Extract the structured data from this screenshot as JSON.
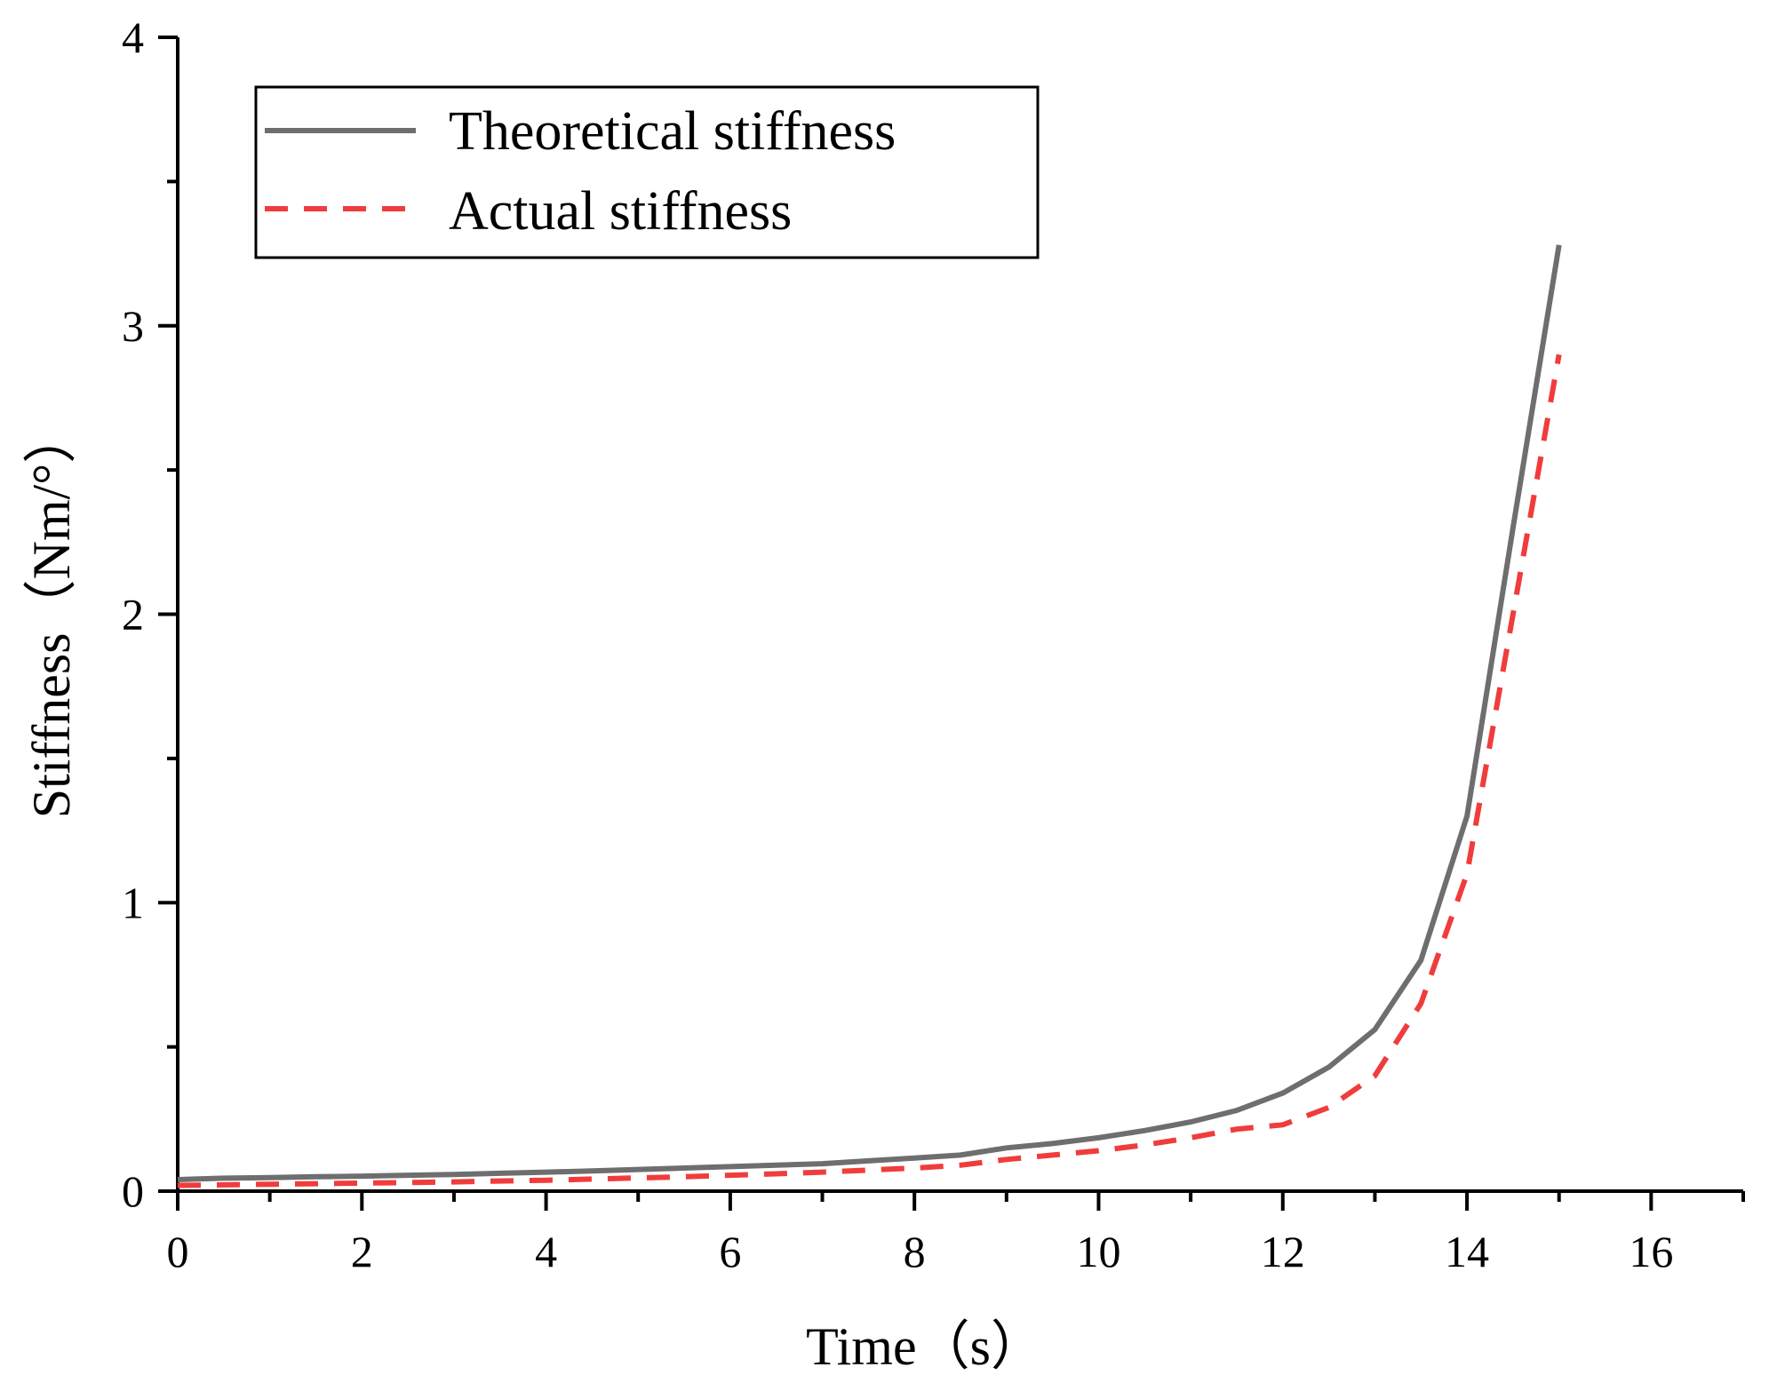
{
  "chart_data": {
    "type": "line",
    "title": "",
    "xlabel": "Time（s）",
    "ylabel": "Stiffness（Nm/°）",
    "xlim": [
      0,
      17
    ],
    "ylim": [
      0,
      4
    ],
    "x_major_ticks": [
      0,
      2,
      4,
      6,
      8,
      10,
      12,
      14,
      16
    ],
    "x_tick_labels": [
      "0",
      "2",
      "4",
      "6",
      "8",
      "10",
      "12",
      "14",
      "16"
    ],
    "x_minor_ticks": [
      1,
      3,
      5,
      7,
      9,
      11,
      13,
      15,
      17
    ],
    "y_major_ticks": [
      0,
      1,
      2,
      3,
      4
    ],
    "y_tick_labels": [
      "0",
      "1",
      "2",
      "3",
      "4"
    ],
    "y_minor_ticks": [
      0.5,
      1.5,
      2.5,
      3.5
    ],
    "grid": false,
    "legend_position": "top-left",
    "series": [
      {
        "name": "Theoretical stiffness",
        "color": "#6e6e6e",
        "style": "solid",
        "x": [
          0,
          0.5,
          1,
          1.5,
          2,
          2.5,
          3,
          3.5,
          4,
          4.5,
          5,
          5.5,
          6,
          6.5,
          7,
          7.5,
          8,
          8.5,
          9,
          9.5,
          10,
          10.5,
          11,
          11.5,
          12,
          12.5,
          13,
          13.5,
          14,
          14.5,
          15
        ],
        "y": [
          0.04,
          0.045,
          0.047,
          0.05,
          0.052,
          0.055,
          0.058,
          0.062,
          0.066,
          0.07,
          0.075,
          0.08,
          0.085,
          0.09,
          0.095,
          0.105,
          0.115,
          0.125,
          0.15,
          0.165,
          0.185,
          0.21,
          0.24,
          0.28,
          0.34,
          0.43,
          0.56,
          0.8,
          1.3,
          2.3,
          3.28
        ]
      },
      {
        "name": "Actual stiffness",
        "color": "#f03c3c",
        "style": "dashed",
        "x": [
          0,
          0.5,
          1,
          1.5,
          2,
          2.5,
          3,
          3.5,
          4,
          4.5,
          5,
          5.5,
          6,
          6.5,
          7,
          7.5,
          8,
          8.5,
          9,
          9.5,
          10,
          10.5,
          11,
          11.5,
          12,
          12.5,
          13,
          13.5,
          14,
          14.5,
          15
        ],
        "y": [
          0.02,
          0.022,
          0.024,
          0.026,
          0.028,
          0.03,
          0.032,
          0.035,
          0.038,
          0.042,
          0.046,
          0.05,
          0.055,
          0.06,
          0.066,
          0.073,
          0.08,
          0.09,
          0.11,
          0.125,
          0.14,
          0.16,
          0.185,
          0.215,
          0.23,
          0.29,
          0.4,
          0.65,
          1.1,
          2.0,
          2.9
        ]
      }
    ]
  }
}
